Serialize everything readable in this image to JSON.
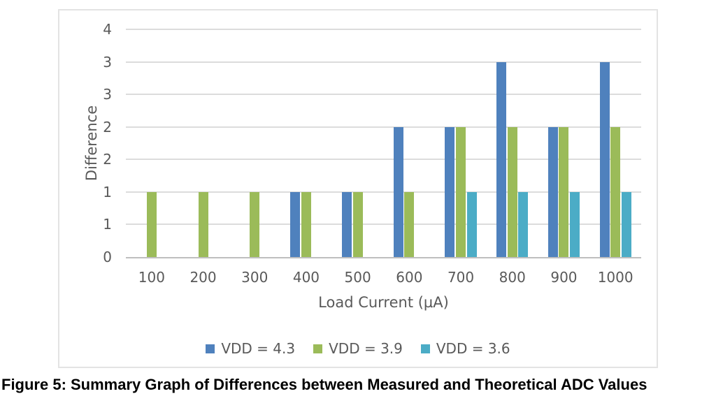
{
  "figure": {
    "caption": "Figure 5: Summary Graph of Differences between Measured and Theoretical ADC Values"
  },
  "chart_data": {
    "type": "bar",
    "title": "",
    "xlabel": "Load Current (µA)",
    "ylabel": "Difference",
    "categories": [
      "100",
      "200",
      "300",
      "400",
      "500",
      "600",
      "700",
      "800",
      "900",
      "1000"
    ],
    "series": [
      {
        "name": "VDD = 4.3",
        "color": "#4F81BD",
        "values": [
          0,
          0,
          0,
          1,
          1,
          2,
          2,
          3,
          2,
          3
        ]
      },
      {
        "name": "VDD = 3.9",
        "color": "#9BBB59",
        "values": [
          1,
          1,
          1,
          1,
          1,
          1,
          2,
          2,
          2,
          2
        ]
      },
      {
        "name": "VDD = 3.6",
        "color": "#4BACC6",
        "values": [
          0,
          0,
          0,
          0,
          0,
          0,
          1,
          1,
          1,
          1
        ]
      }
    ],
    "ylim": [
      0,
      3.5
    ],
    "y_axis": {
      "min": 0,
      "max": 3.5,
      "tick_step": 0.5,
      "tick_labels": [
        "0",
        "1",
        "1",
        "2",
        "2",
        "3",
        "3",
        "4"
      ]
    },
    "grid": true,
    "legend_position": "bottom",
    "colors": {
      "gridline": "#DCDCDC",
      "axis_line": "#BFBFBF",
      "text": "#595959",
      "frame_border": "#E3E3E3",
      "caption_text": "#000000"
    }
  }
}
